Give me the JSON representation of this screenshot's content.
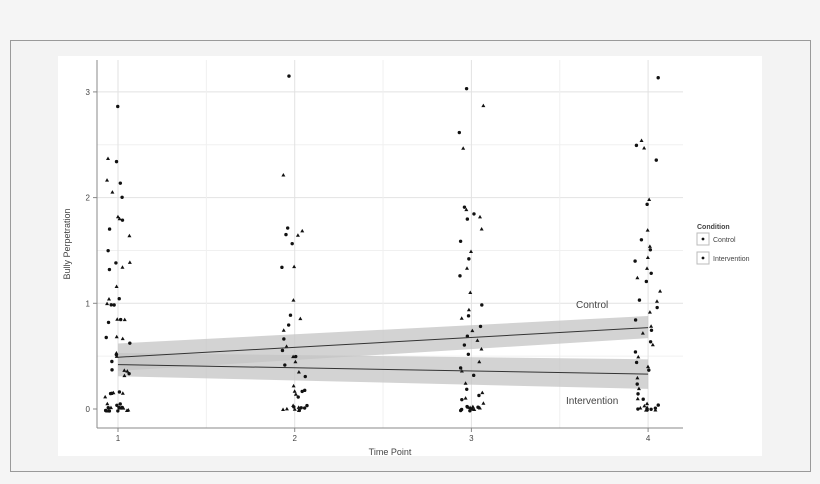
{
  "chart_data": {
    "type": "scatter",
    "xlabel": "Time Point",
    "ylabel": "Bully Perpetration",
    "x_ticks": [
      "1",
      "2",
      "3",
      "4"
    ],
    "y_ticks": [
      "0",
      "1",
      "2",
      "3"
    ],
    "xlim": [
      0.9,
      4.2
    ],
    "ylim": [
      -0.18,
      3.3
    ],
    "grid": true,
    "legend": {
      "title": "Condition",
      "position": "right",
      "entries": [
        "Control",
        "Intervention"
      ]
    },
    "annotations": [
      "Control",
      "Intervention"
    ],
    "fit_lines": [
      {
        "name": "Control",
        "x": [
          1,
          4
        ],
        "y": [
          0.49,
          0.77
        ],
        "ci_lower": [
          0.36,
          0.67
        ],
        "ci_upper": [
          0.62,
          0.88
        ]
      },
      {
        "name": "Intervention",
        "x": [
          1,
          4
        ],
        "y": [
          0.42,
          0.33
        ],
        "ci_lower": [
          0.31,
          0.19
        ],
        "ci_upper": [
          0.53,
          0.47
        ]
      }
    ],
    "points": {
      "1": [
        2.86,
        2.38,
        2.34,
        2.15,
        2.14,
        2.04,
        2.02,
        1.83,
        1.8,
        1.8,
        1.72,
        1.62,
        1.5,
        1.4,
        1.38,
        1.35,
        1.3,
        1.17,
        1.05,
        1.03,
        0.99,
        0.98,
        0.97,
        0.86,
        0.85,
        0.84,
        0.83,
        0.7,
        0.68,
        0.66,
        0.63,
        0.53,
        0.5,
        0.5,
        0.46,
        0.38,
        0.36,
        0.34,
        0.32,
        0.31,
        0.18,
        0.16,
        0.15,
        0.14,
        0.13,
        0.12,
        0.05,
        0.03,
        0.02,
        0.01,
        0.0,
        0.0,
        0.0,
        0.0,
        0.0,
        0.0,
        0.0,
        0.0,
        0.0,
        0.0,
        0.0
      ],
      "2": [
        3.15,
        2.22,
        1.72,
        1.7,
        1.67,
        1.66,
        1.58,
        1.35,
        1.33,
        1.02,
        0.87,
        0.85,
        0.8,
        0.73,
        0.68,
        0.6,
        0.55,
        0.5,
        0.48,
        0.45,
        0.4,
        0.35,
        0.3,
        0.2,
        0.18,
        0.16,
        0.15,
        0.12,
        0.1,
        0.05,
        0.03,
        0.02,
        0.0,
        0.0,
        0.0,
        0.0,
        0.0,
        0.0,
        0.0,
        0.0
      ],
      "3": [
        3.05,
        2.87,
        2.62,
        2.46,
        1.9,
        1.87,
        1.85,
        1.83,
        1.8,
        1.7,
        1.6,
        1.5,
        1.42,
        1.35,
        1.25,
        1.1,
        1.0,
        0.95,
        0.9,
        0.85,
        0.8,
        0.75,
        0.7,
        0.65,
        0.6,
        0.55,
        0.5,
        0.45,
        0.4,
        0.35,
        0.3,
        0.25,
        0.2,
        0.15,
        0.12,
        0.1,
        0.08,
        0.05,
        0.03,
        0.02,
        0.0,
        0.0,
        0.0,
        0.0,
        0.0,
        0.0,
        0.0,
        0.0,
        0.0
      ],
      "4": [
        3.14,
        2.55,
        2.5,
        2.45,
        2.35,
        2.0,
        1.95,
        1.7,
        1.6,
        1.55,
        1.5,
        1.45,
        1.4,
        1.35,
        1.3,
        1.25,
        1.2,
        1.1,
        1.05,
        1.0,
        0.95,
        0.9,
        0.85,
        0.8,
        0.75,
        0.7,
        0.65,
        0.6,
        0.55,
        0.5,
        0.45,
        0.4,
        0.35,
        0.3,
        0.25,
        0.2,
        0.15,
        0.1,
        0.08,
        0.05,
        0.03,
        0.02,
        0.0,
        0.0,
        0.0,
        0.0,
        0.0,
        0.0,
        0.0,
        0.0
      ]
    },
    "colors": {
      "points": "#111111",
      "band": "#c4c4c4",
      "line": "#333333"
    }
  }
}
